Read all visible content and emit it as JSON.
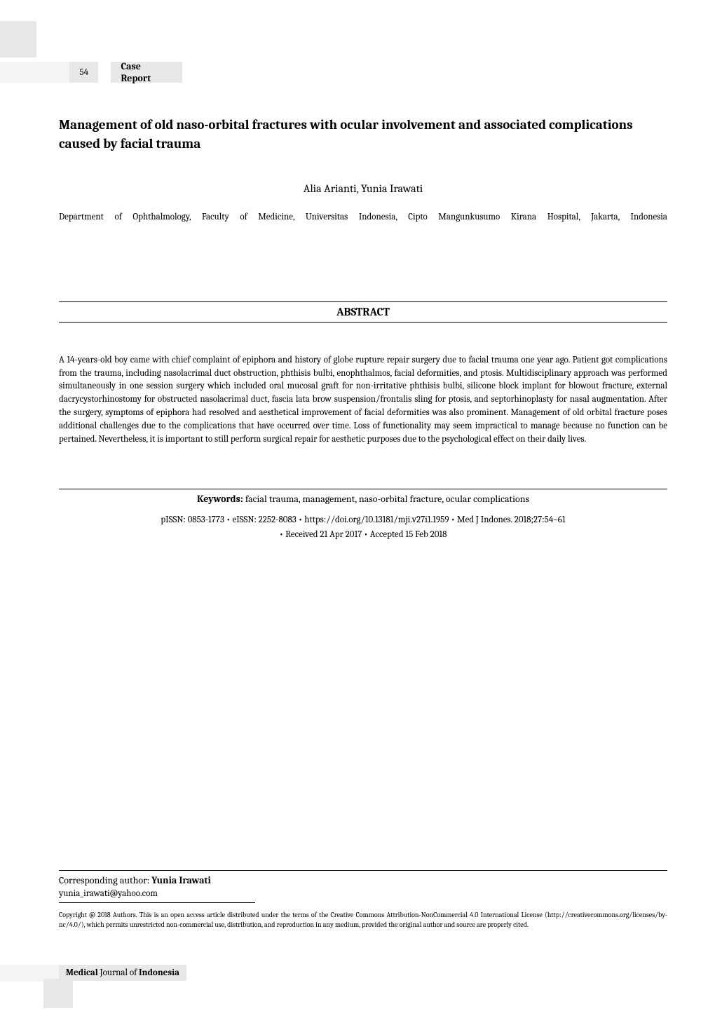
{
  "page_number": "54",
  "section_label": "Case Report",
  "title": "Management of old naso-orbital fractures with ocular involvement and associated complications caused by facial trauma",
  "authors": "Alia Arianti, Yunia Irawati",
  "affiliation": "Department of Ophthalmology, Faculty of Medicine, Universitas Indonesia, Cipto Mangunkusumo Kirana Hospital, Jakarta, Indonesia",
  "abstract_header": "ABSTRACT",
  "abstract_body": "A 14-years-old boy came with chief complaint of epiphora and history of globe rupture repair surgery due to facial trauma one year ago. Patient got complications from the trauma, including nasolacrimal duct obstruction, phthisis bulbi, enophthalmos, facial deformities, and ptosis. Multidisciplinary approach was performed simultaneously in one session surgery which included oral mucosal graft for non-irritative phthisis bulbi, silicone block implant for blowout fracture, external dacrycystorhinostomy for obstructed nasolacrimal duct, fascia lata brow suspension/frontalis sling for ptosis, and septorhinoplasty for nasal augmentation. After the surgery, symptoms of epiphora had resolved and aesthetical improvement of facial deformities was also prominent. Management of old orbital fracture poses additional challenges due to the complications that have occurred over time. Loss of functionality may seem impractical to manage because no function can be pertained. Nevertheless, it is important to still perform surgical repair for aesthetic purposes due to the psychological effect on their daily lives.",
  "keywords_label": "Keywords:",
  "keywords_text": " facial trauma, management, naso-orbital fracture, ocular complications",
  "meta_line1": "pISSN: 0853-1773 • eISSN: 2252-8083 • https://doi.org/10.13181/mji.v27i1.1959 • Med J Indones. 2018;27:54–61",
  "meta_line2": "• Received 21 Apr 2017 • Accepted 15 Feb 2018",
  "corresponding_label": "Corresponding author: ",
  "corresponding_name": "Yunia Irawati",
  "corresponding_email": "yunia_irawati@yahoo.com",
  "copyright": "Copyright @ 2018 Authors. This is an open access article distributed under the terms of the Creative Commons Attribution-NonCommercial 4.0 International License (http://creativecommons.org/licenses/by-nc/4.0/), which permits unrestricted non-commercial use, distribution, and reproduction in any medium, provided the original author and source are properly cited.",
  "journal_bold1": "Medical",
  "journal_normal": " Journal of ",
  "journal_bold2": "Indonesia",
  "colors": {
    "background": "#ffffff",
    "text": "#000000",
    "light_gray": "#e8e8e8",
    "lighter_gray": "#f4f4f4"
  },
  "typography": {
    "body_font": "Cambria, Georgia, serif",
    "title_size": 19,
    "body_size": 13,
    "abstract_header_size": 16
  }
}
